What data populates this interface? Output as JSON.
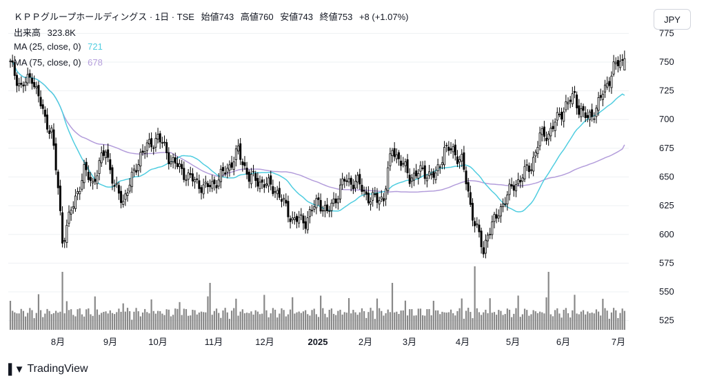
{
  "header": {
    "title": "ＫＰＰグループホールディングス · 1日 · TSE",
    "open_label": "始値",
    "open_value": "743",
    "high_label": "高値",
    "high_value": "760",
    "low_label": "安値",
    "low_value": "743",
    "close_label": "終値",
    "close_value": "753",
    "change": "+8 (+1.07%)",
    "volume_label": "出来高",
    "volume_value": "323.8K",
    "ma25_label": "MA (25, close, 0)",
    "ma25_value": "721",
    "ma75_label": "MA (75, close, 0)",
    "ma75_value": "678"
  },
  "currency_button": "JPY",
  "brand": {
    "name": "TradingView",
    "icon": "tradingview-logo-icon"
  },
  "colors": {
    "up_candle": "#ffffff",
    "candle_border": "#000000",
    "down_candle": "#000000",
    "volume": "#888888",
    "ma25": "#4fcde0",
    "ma75": "#b39ddb",
    "grid": "#eef0f3",
    "axis_text": "#131722"
  },
  "chart_data": {
    "type": "candlestick",
    "price_axis": {
      "ticks": [
        525,
        550,
        575,
        600,
        625,
        650,
        675,
        700,
        725,
        750,
        775
      ],
      "range": [
        517,
        780
      ]
    },
    "time_axis": {
      "labels": [
        "8月",
        "9月",
        "10月",
        "11月",
        "12月",
        "2025",
        "2月",
        "3月",
        "4月",
        "5月",
        "6月",
        "7月"
      ],
      "bold": [
        "2025"
      ]
    },
    "grid": true,
    "anchors": [
      [
        0,
        748
      ],
      [
        5,
        728
      ],
      [
        10,
        738
      ],
      [
        16,
        700
      ],
      [
        19,
        690
      ],
      [
        22,
        640
      ],
      [
        24,
        595
      ],
      [
        28,
        620
      ],
      [
        34,
        655
      ],
      [
        38,
        645
      ],
      [
        44,
        675
      ],
      [
        48,
        640
      ],
      [
        52,
        630
      ],
      [
        56,
        648
      ],
      [
        60,
        670
      ],
      [
        68,
        685
      ],
      [
        74,
        665
      ],
      [
        82,
        650
      ],
      [
        90,
        640
      ],
      [
        96,
        648
      ],
      [
        101,
        660
      ],
      [
        105,
        672
      ],
      [
        110,
        650
      ],
      [
        116,
        645
      ],
      [
        122,
        640
      ],
      [
        130,
        613
      ],
      [
        136,
        612
      ],
      [
        142,
        630
      ],
      [
        146,
        618
      ],
      [
        154,
        647
      ],
      [
        160,
        645
      ],
      [
        166,
        630
      ],
      [
        172,
        632
      ],
      [
        176,
        675
      ],
      [
        180,
        663
      ],
      [
        184,
        650
      ],
      [
        190,
        655
      ],
      [
        196,
        650
      ],
      [
        200,
        675
      ],
      [
        204,
        672
      ],
      [
        208,
        665
      ],
      [
        212,
        625
      ],
      [
        216,
        598
      ],
      [
        218,
        583
      ],
      [
        220,
        603
      ],
      [
        224,
        614
      ],
      [
        228,
        632
      ],
      [
        234,
        647
      ],
      [
        240,
        660
      ],
      [
        244,
        685
      ],
      [
        248,
        688
      ],
      [
        252,
        700
      ],
      [
        256,
        713
      ],
      [
        260,
        720
      ],
      [
        262,
        710
      ],
      [
        266,
        700
      ],
      [
        270,
        710
      ],
      [
        274,
        727
      ],
      [
        278,
        745
      ],
      [
        281,
        750
      ]
    ],
    "ma25_last": 721,
    "ma75_last": 678,
    "last": {
      "open": 743,
      "high": 760,
      "low": 743,
      "close": 753,
      "volume_k": 323.8
    }
  }
}
